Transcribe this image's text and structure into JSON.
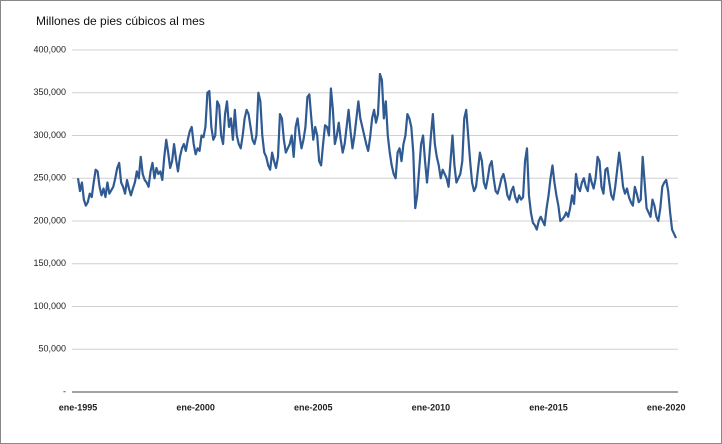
{
  "chart_data": {
    "type": "line",
    "title": "Millones de pies cúbicos al mes",
    "categories": [
      "ene-1995",
      null,
      null,
      null,
      null,
      null,
      null,
      null,
      null,
      null,
      null,
      null,
      null,
      null,
      null,
      null,
      null,
      null,
      null,
      null,
      null,
      null,
      null,
      null,
      null,
      null,
      null,
      null,
      null,
      null,
      null,
      null,
      null,
      null,
      null,
      null,
      null,
      null,
      null,
      null,
      null,
      null,
      null,
      null,
      null,
      null,
      null,
      null,
      null,
      null,
      null,
      null,
      null,
      null,
      null,
      null,
      null,
      null,
      null,
      null,
      "ene-2000",
      null,
      null,
      null,
      null,
      null,
      null,
      null,
      null,
      null,
      null,
      null,
      null,
      null,
      null,
      null,
      null,
      null,
      null,
      null,
      null,
      null,
      null,
      null,
      null,
      null,
      null,
      null,
      null,
      null,
      null,
      null,
      null,
      null,
      null,
      null,
      null,
      null,
      null,
      null,
      null,
      null,
      null,
      null,
      null,
      null,
      null,
      null,
      null,
      null,
      null,
      null,
      null,
      null,
      null,
      null,
      null,
      null,
      null,
      null,
      "ene-2005",
      null,
      null,
      null,
      null,
      null,
      null,
      null,
      null,
      null,
      null,
      null,
      null,
      null,
      null,
      null,
      null,
      null,
      null,
      null,
      null,
      null,
      null,
      null,
      null,
      null,
      null,
      null,
      null,
      null,
      null,
      null,
      null,
      null,
      null,
      null,
      null,
      null,
      null,
      null,
      null,
      null,
      null,
      null,
      null,
      null,
      null,
      null,
      null,
      null,
      null,
      null,
      null,
      null,
      null,
      null,
      null,
      null,
      null,
      null,
      "ene-2010",
      null,
      null,
      null,
      null,
      null,
      null,
      null,
      null,
      null,
      null,
      null,
      null,
      null,
      null,
      null,
      null,
      null,
      null,
      null,
      null,
      null,
      null,
      null,
      null,
      null,
      null,
      null,
      null,
      null,
      null,
      null,
      null,
      null,
      null,
      null,
      null,
      null,
      null,
      null,
      null,
      null,
      null,
      null,
      null,
      null,
      null,
      null,
      null,
      null,
      null,
      null,
      null,
      null,
      null,
      null,
      null,
      null,
      null,
      null,
      "ene-2015",
      null,
      null,
      null,
      null,
      null,
      null,
      null,
      null,
      null,
      null,
      null,
      null,
      null,
      null,
      null,
      null,
      null,
      null,
      null,
      null,
      null,
      null,
      null,
      null,
      null,
      null,
      null,
      null,
      null,
      null,
      null,
      null,
      null,
      null,
      null,
      null,
      null,
      null,
      null,
      null,
      null,
      null,
      null,
      null,
      null,
      null,
      null,
      null,
      null,
      null,
      null,
      null,
      null,
      null,
      null,
      null,
      null,
      null,
      null,
      "ene-2020",
      null,
      null,
      null,
      null,
      null
    ],
    "series": [
      {
        "color": "#2f5a92",
        "values": [
          250000,
          235000,
          245000,
          225000,
          218000,
          222000,
          232000,
          228000,
          245000,
          260000,
          258000,
          240000,
          230000,
          238000,
          228000,
          245000,
          232000,
          236000,
          240000,
          250000,
          262000,
          268000,
          245000,
          240000,
          232000,
          248000,
          238000,
          230000,
          238000,
          245000,
          258000,
          250000,
          275000,
          255000,
          248000,
          245000,
          240000,
          258000,
          268000,
          250000,
          262000,
          255000,
          258000,
          248000,
          275000,
          295000,
          280000,
          262000,
          270000,
          290000,
          272000,
          258000,
          275000,
          285000,
          290000,
          282000,
          295000,
          305000,
          310000,
          290000,
          278000,
          285000,
          282000,
          300000,
          298000,
          310000,
          350000,
          352000,
          310000,
          295000,
          300000,
          340000,
          335000,
          300000,
          290000,
          325000,
          340000,
          310000,
          320000,
          295000,
          330000,
          300000,
          290000,
          285000,
          300000,
          320000,
          330000,
          325000,
          310000,
          295000,
          290000,
          300000,
          350000,
          340000,
          300000,
          280000,
          275000,
          265000,
          260000,
          280000,
          270000,
          262000,
          275000,
          325000,
          320000,
          295000,
          280000,
          285000,
          290000,
          300000,
          275000,
          310000,
          320000,
          300000,
          285000,
          295000,
          310000,
          345000,
          348000,
          320000,
          295000,
          310000,
          300000,
          270000,
          265000,
          290000,
          312000,
          310000,
          300000,
          355000,
          330000,
          290000,
          300000,
          315000,
          295000,
          280000,
          290000,
          310000,
          330000,
          305000,
          285000,
          300000,
          320000,
          340000,
          320000,
          310000,
          300000,
          290000,
          282000,
          298000,
          320000,
          330000,
          315000,
          325000,
          372000,
          365000,
          320000,
          340000,
          300000,
          280000,
          265000,
          255000,
          250000,
          280000,
          285000,
          270000,
          290000,
          300000,
          325000,
          320000,
          310000,
          280000,
          215000,
          230000,
          260000,
          290000,
          300000,
          270000,
          245000,
          270000,
          300000,
          325000,
          290000,
          275000,
          265000,
          250000,
          260000,
          255000,
          250000,
          240000,
          270000,
          300000,
          265000,
          245000,
          250000,
          255000,
          270000,
          320000,
          330000,
          300000,
          270000,
          245000,
          235000,
          240000,
          260000,
          280000,
          270000,
          245000,
          238000,
          250000,
          265000,
          270000,
          250000,
          235000,
          232000,
          240000,
          250000,
          255000,
          245000,
          230000,
          225000,
          235000,
          240000,
          228000,
          222000,
          230000,
          225000,
          228000,
          270000,
          285000,
          230000,
          210000,
          198000,
          195000,
          190000,
          200000,
          205000,
          200000,
          195000,
          215000,
          230000,
          250000,
          265000,
          245000,
          230000,
          218000,
          200000,
          202000,
          205000,
          210000,
          205000,
          215000,
          230000,
          220000,
          255000,
          240000,
          235000,
          245000,
          250000,
          240000,
          235000,
          255000,
          245000,
          238000,
          250000,
          275000,
          270000,
          240000,
          232000,
          260000,
          262000,
          245000,
          230000,
          225000,
          240000,
          260000,
          280000,
          262000,
          240000,
          232000,
          238000,
          228000,
          222000,
          218000,
          240000,
          232000,
          222000,
          225000,
          275000,
          245000,
          215000,
          210000,
          205000,
          225000,
          218000,
          205000,
          200000,
          215000,
          240000,
          245000,
          248000,
          235000,
          210000,
          190000,
          185000,
          180000
        ]
      }
    ],
    "ylim": [
      0,
      400000
    ],
    "yticks": [
      {
        "value": 0,
        "label": "-"
      },
      {
        "value": 50000,
        "label": "50,000"
      },
      {
        "value": 100000,
        "label": "100,000"
      },
      {
        "value": 150000,
        "label": "150,000"
      },
      {
        "value": 200000,
        "label": "200,000"
      },
      {
        "value": 250000,
        "label": "250,000"
      },
      {
        "value": 300000,
        "label": "300,000"
      },
      {
        "value": 350000,
        "label": "350,000"
      },
      {
        "value": 400000,
        "label": "400,000"
      }
    ],
    "grid": true
  }
}
